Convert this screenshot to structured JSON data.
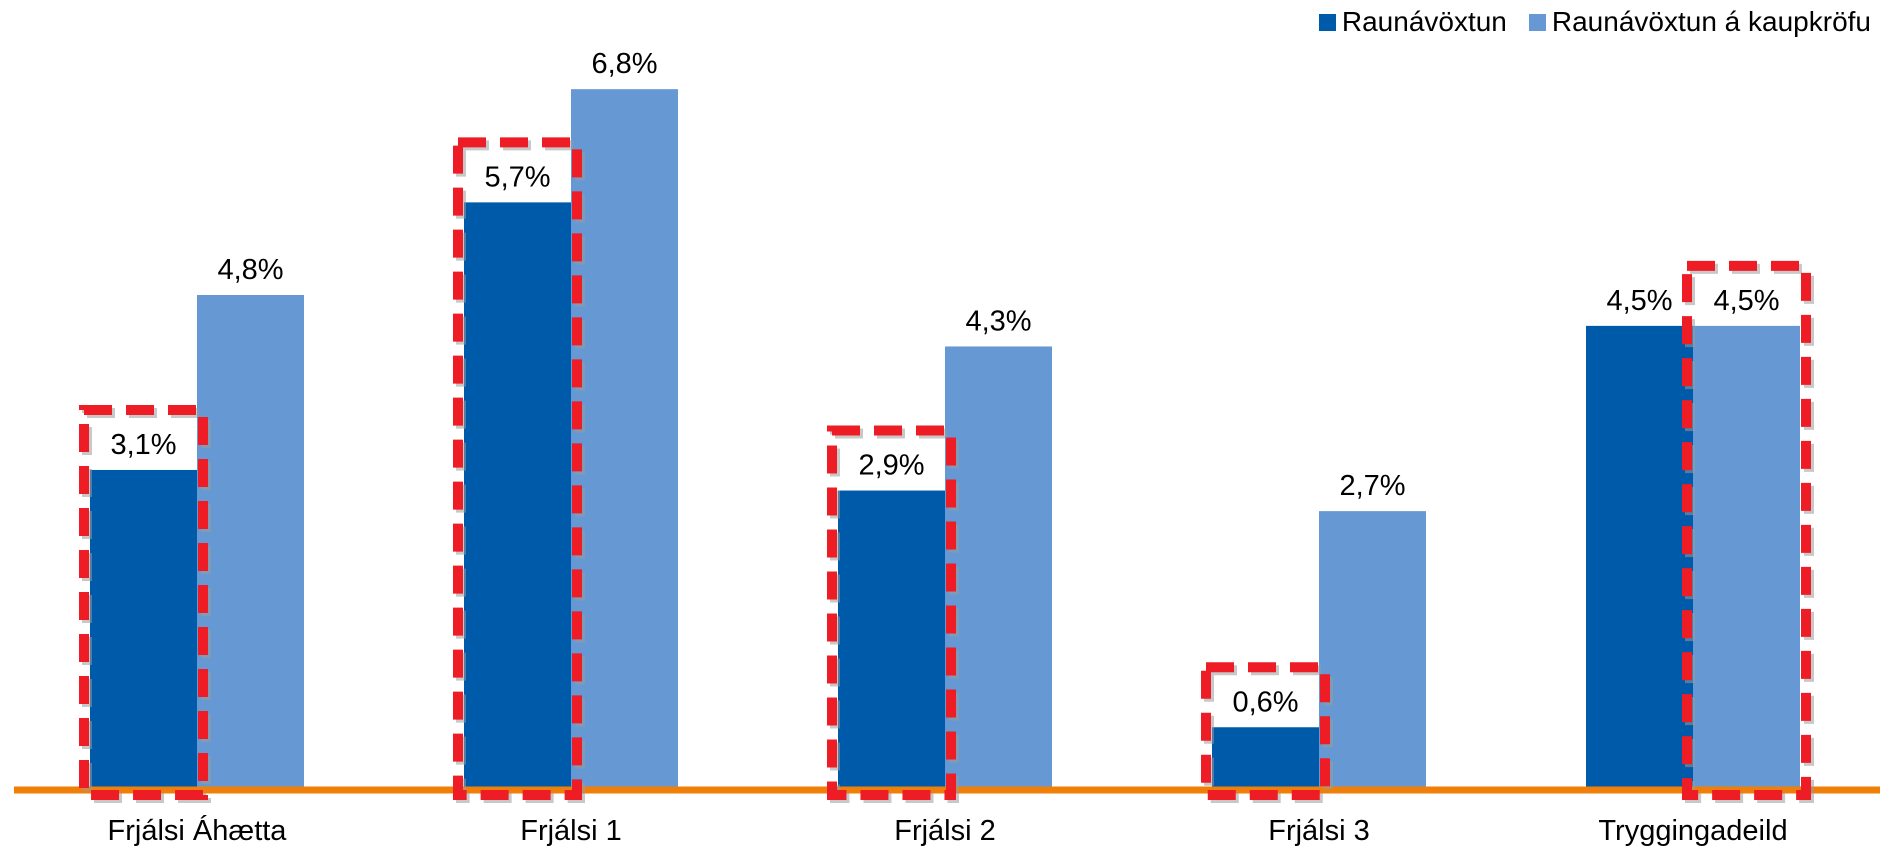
{
  "chart_data": {
    "type": "bar",
    "categories": [
      "Frjálsi Áhætta",
      "Frjálsi 1",
      "Frjálsi 2",
      "Frjálsi 3",
      "Tryggingadeild"
    ],
    "series": [
      {
        "name": "Raunávöxtun",
        "color": "#005AAA",
        "values": [
          3.1,
          5.7,
          2.9,
          0.6,
          4.5
        ],
        "labels": [
          "3,1%",
          "5,7%",
          "2,9%",
          "0,6%",
          "4,5%"
        ]
      },
      {
        "name": "Raunávöxtun á kaupkröfu",
        "color": "#6699D3",
        "values": [
          4.8,
          6.8,
          4.3,
          2.7,
          4.5
        ],
        "labels": [
          "4,8%",
          "6,8%",
          "4,3%",
          "2,7%",
          "4,5%"
        ]
      }
    ],
    "highlights": [
      {
        "category": "Frjálsi Áhætta",
        "series": "Raunávöxtun"
      },
      {
        "category": "Frjálsi 1",
        "series": "Raunávöxtun"
      },
      {
        "category": "Frjálsi 2",
        "series": "Raunávöxtun"
      },
      {
        "category": "Frjálsi 3",
        "series": "Raunávöxtun"
      },
      {
        "category": "Tryggingadeild",
        "series": "Raunávöxtun á kaupkröfu"
      }
    ],
    "highlight_color": "#EE1C25",
    "baseline_color": "#F07F09",
    "ylim": [
      0,
      7.2
    ],
    "grid": false,
    "legend_position": "top-right",
    "title": "",
    "xlabel": "",
    "ylabel": ""
  }
}
